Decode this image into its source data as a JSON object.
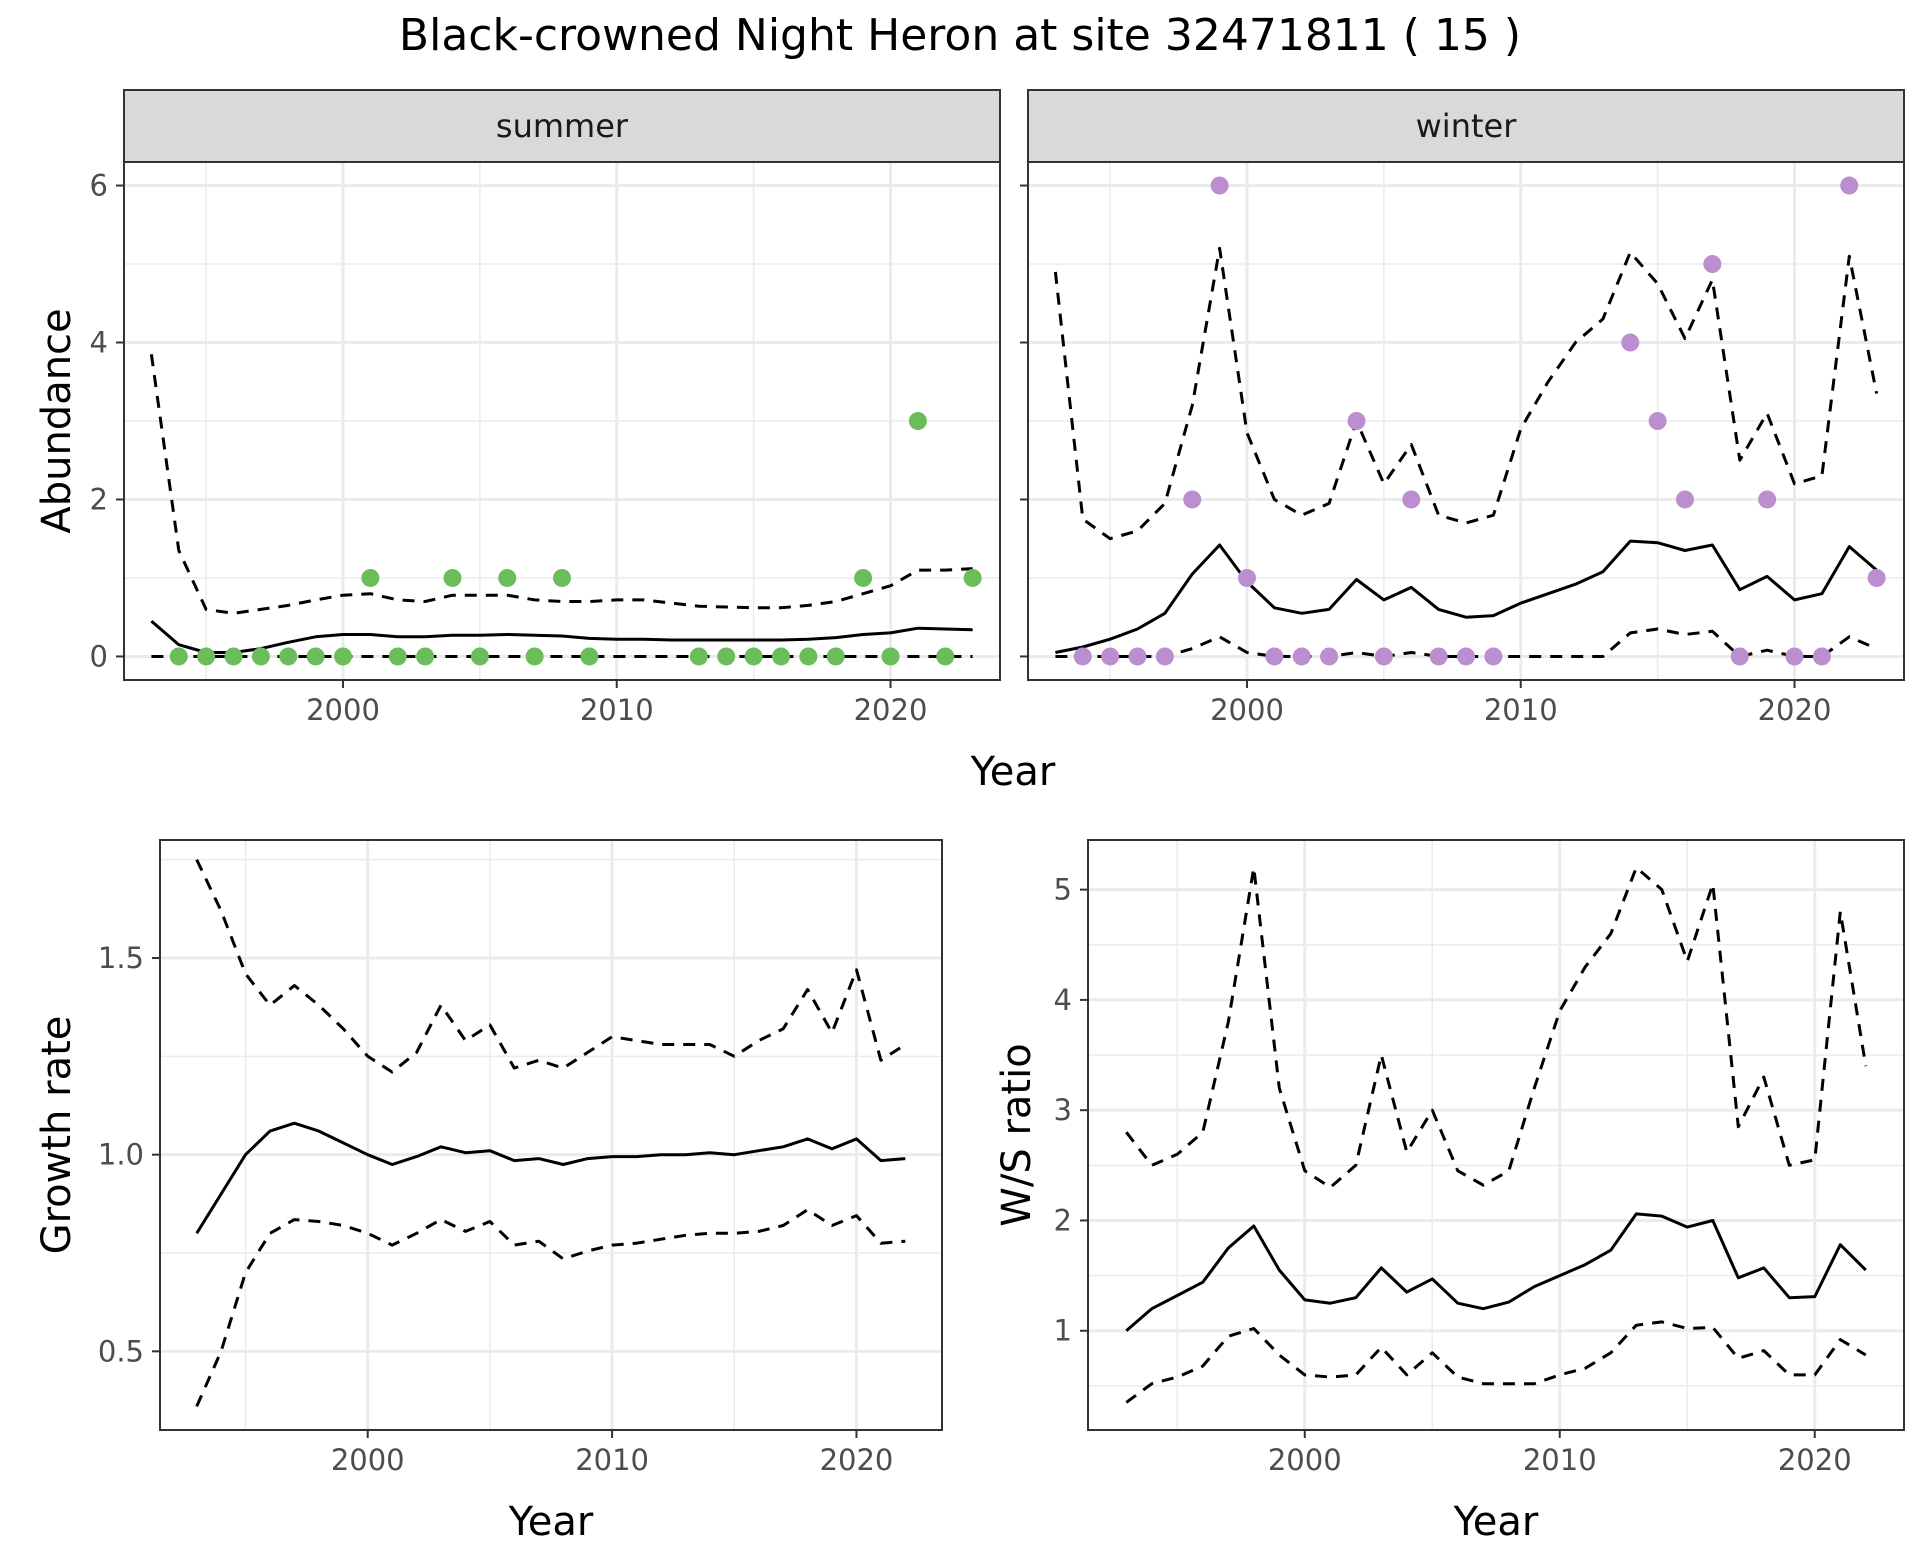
{
  "page_title": "Black-crowned Night Heron at site 32471811 ( 15 )",
  "colors": {
    "summer_points": "#6bbd5b",
    "winter_points": "#bb8fcf",
    "lines": "#000000",
    "strip_bg": "#d9d9d9",
    "grid": "#ebebeb"
  },
  "chart_data": [
    {
      "id": "abundance_summer",
      "type": "line",
      "facet_label": "summer",
      "xlabel": "Year",
      "ylabel": "Abundance",
      "xlim": [
        1992,
        2024
      ],
      "ylim": [
        -0.3,
        6.3
      ],
      "xticks": [
        2000,
        2010,
        2020
      ],
      "yticks": [
        0,
        2,
        4,
        6
      ],
      "grid": true,
      "x": [
        1993,
        1994,
        1995,
        1996,
        1997,
        1998,
        1999,
        2000,
        2001,
        2002,
        2003,
        2004,
        2005,
        2006,
        2007,
        2008,
        2009,
        2010,
        2011,
        2012,
        2013,
        2014,
        2015,
        2016,
        2017,
        2018,
        2019,
        2020,
        2021,
        2022,
        2023
      ],
      "series": [
        {
          "role": "mean",
          "style": "solid",
          "values": [
            0.45,
            0.15,
            0.05,
            0.05,
            0.1,
            0.18,
            0.25,
            0.28,
            0.28,
            0.25,
            0.25,
            0.27,
            0.27,
            0.28,
            0.27,
            0.26,
            0.23,
            0.22,
            0.22,
            0.21,
            0.21,
            0.21,
            0.21,
            0.21,
            0.22,
            0.24,
            0.28,
            0.3,
            0.36,
            0.35,
            0.34
          ]
        },
        {
          "role": "upper",
          "style": "dashed",
          "values": [
            3.85,
            1.35,
            0.6,
            0.55,
            0.6,
            0.65,
            0.72,
            0.78,
            0.8,
            0.72,
            0.7,
            0.78,
            0.78,
            0.78,
            0.72,
            0.7,
            0.7,
            0.72,
            0.72,
            0.68,
            0.64,
            0.63,
            0.62,
            0.62,
            0.65,
            0.7,
            0.8,
            0.9,
            1.1,
            1.1,
            1.12
          ]
        },
        {
          "role": "lower",
          "style": "dashed",
          "values": [
            0,
            0,
            0,
            0,
            0,
            0,
            0,
            0,
            0,
            0,
            0,
            0,
            0,
            0,
            0,
            0,
            0,
            0,
            0,
            0,
            0,
            0,
            0,
            0,
            0,
            0,
            0,
            0,
            0,
            0,
            0
          ]
        }
      ],
      "points": {
        "x": [
          1994,
          1995,
          1996,
          1997,
          1998,
          1999,
          2000,
          2001,
          2002,
          2003,
          2004,
          2005,
          2006,
          2007,
          2008,
          2009,
          2013,
          2014,
          2015,
          2016,
          2017,
          2018,
          2019,
          2020,
          2021,
          2022,
          2023
        ],
        "y": [
          0,
          0,
          0,
          0,
          0,
          0,
          0,
          1,
          0,
          0,
          1,
          0,
          1,
          0,
          1,
          0,
          0,
          0,
          0,
          0,
          0,
          0,
          1,
          0,
          3,
          0,
          1
        ]
      }
    },
    {
      "id": "abundance_winter",
      "type": "line",
      "facet_label": "winter",
      "xlabel": "Year",
      "ylabel": "Abundance",
      "xlim": [
        1992,
        2024
      ],
      "ylim": [
        -0.3,
        6.3
      ],
      "xticks": [
        2000,
        2010,
        2020
      ],
      "yticks": [
        0,
        2,
        4,
        6
      ],
      "grid": true,
      "x": [
        1993,
        1994,
        1995,
        1996,
        1997,
        1998,
        1999,
        2000,
        2001,
        2002,
        2003,
        2004,
        2005,
        2006,
        2007,
        2008,
        2009,
        2010,
        2011,
        2012,
        2013,
        2014,
        2015,
        2016,
        2017,
        2018,
        2019,
        2020,
        2021,
        2022,
        2023
      ],
      "series": [
        {
          "role": "mean",
          "style": "solid",
          "values": [
            0.05,
            0.12,
            0.22,
            0.35,
            0.55,
            1.05,
            1.42,
            0.95,
            0.62,
            0.55,
            0.6,
            0.98,
            0.72,
            0.88,
            0.6,
            0.5,
            0.52,
            0.68,
            0.8,
            0.92,
            1.08,
            1.47,
            1.45,
            1.35,
            1.42,
            0.85,
            1.02,
            0.72,
            0.8,
            1.4,
            1.1
          ]
        },
        {
          "role": "upper",
          "style": "dashed",
          "values": [
            4.9,
            1.75,
            1.5,
            1.6,
            1.95,
            3.2,
            5.2,
            2.85,
            2.0,
            1.8,
            1.95,
            3.0,
            2.2,
            2.7,
            1.8,
            1.7,
            1.8,
            2.9,
            3.5,
            4.0,
            4.3,
            5.15,
            4.75,
            4.05,
            4.8,
            2.5,
            3.1,
            2.2,
            2.3,
            5.1,
            3.35
          ]
        },
        {
          "role": "lower",
          "style": "dashed",
          "values": [
            0,
            0,
            0,
            0,
            0,
            0.1,
            0.25,
            0.05,
            0,
            0,
            0,
            0.05,
            0,
            0.05,
            0,
            0,
            0,
            0,
            0,
            0,
            0,
            0.3,
            0.35,
            0.28,
            0.32,
            0,
            0.08,
            0,
            0,
            0.25,
            0.1
          ]
        }
      ],
      "points": {
        "x": [
          1994,
          1995,
          1996,
          1997,
          1998,
          1999,
          2000,
          2001,
          2002,
          2003,
          2004,
          2005,
          2006,
          2007,
          2008,
          2009,
          2014,
          2015,
          2016,
          2017,
          2018,
          2019,
          2020,
          2021,
          2022,
          2023
        ],
        "y": [
          0,
          0,
          0,
          0,
          2,
          6,
          1,
          0,
          0,
          0,
          3,
          0,
          2,
          0,
          0,
          0,
          4,
          3,
          2,
          5,
          0,
          2,
          0,
          0,
          6,
          1
        ]
      }
    },
    {
      "id": "growth_rate",
      "type": "line",
      "xlabel": "Year",
      "ylabel": "Growth rate",
      "xlim": [
        1991.5,
        2023.5
      ],
      "ylim": [
        0.3,
        1.8
      ],
      "xticks": [
        2000,
        2010,
        2020
      ],
      "yticks": [
        0.5,
        1.0,
        1.5
      ],
      "ytick_labels": [
        "0.5",
        "1.0",
        "1.5"
      ],
      "grid": true,
      "x": [
        1993,
        1994,
        1995,
        1996,
        1997,
        1998,
        1999,
        2000,
        2001,
        2002,
        2003,
        2004,
        2005,
        2006,
        2007,
        2008,
        2009,
        2010,
        2011,
        2012,
        2013,
        2014,
        2015,
        2016,
        2017,
        2018,
        2019,
        2020,
        2021,
        2022
      ],
      "series": [
        {
          "role": "mean",
          "style": "solid",
          "values": [
            0.8,
            0.9,
            1.0,
            1.06,
            1.08,
            1.06,
            1.03,
            1.0,
            0.975,
            0.995,
            1.02,
            1.005,
            1.01,
            0.985,
            0.99,
            0.975,
            0.99,
            0.995,
            0.995,
            1.0,
            1.0,
            1.005,
            1.0,
            1.01,
            1.02,
            1.04,
            1.015,
            1.04,
            0.985,
            0.99
          ]
        },
        {
          "role": "upper",
          "style": "dashed",
          "values": [
            1.75,
            1.62,
            1.46,
            1.38,
            1.43,
            1.38,
            1.32,
            1.25,
            1.21,
            1.26,
            1.38,
            1.29,
            1.33,
            1.22,
            1.24,
            1.22,
            1.26,
            1.3,
            1.29,
            1.28,
            1.28,
            1.28,
            1.25,
            1.29,
            1.32,
            1.42,
            1.31,
            1.47,
            1.24,
            1.28
          ]
        },
        {
          "role": "lower",
          "style": "dashed",
          "values": [
            0.36,
            0.5,
            0.7,
            0.8,
            0.835,
            0.83,
            0.82,
            0.8,
            0.77,
            0.8,
            0.835,
            0.805,
            0.83,
            0.77,
            0.78,
            0.735,
            0.755,
            0.77,
            0.775,
            0.785,
            0.795,
            0.8,
            0.8,
            0.805,
            0.82,
            0.86,
            0.82,
            0.845,
            0.775,
            0.78
          ]
        }
      ]
    },
    {
      "id": "ws_ratio",
      "type": "line",
      "xlabel": "Year",
      "ylabel": "W/S ratio",
      "xlim": [
        1991.5,
        2023.5
      ],
      "ylim": [
        0.1,
        5.45
      ],
      "xticks": [
        2000,
        2010,
        2020
      ],
      "yticks": [
        1,
        2,
        3,
        4,
        5
      ],
      "grid": true,
      "x": [
        1993,
        1994,
        1995,
        1996,
        1997,
        1998,
        1999,
        2000,
        2001,
        2002,
        2003,
        2004,
        2005,
        2006,
        2007,
        2008,
        2009,
        2010,
        2011,
        2012,
        2013,
        2014,
        2015,
        2016,
        2017,
        2018,
        2019,
        2020,
        2021,
        2022
      ],
      "series": [
        {
          "role": "mean",
          "style": "solid",
          "values": [
            1.0,
            1.2,
            1.32,
            1.44,
            1.75,
            1.95,
            1.55,
            1.28,
            1.25,
            1.3,
            1.57,
            1.35,
            1.47,
            1.25,
            1.2,
            1.26,
            1.4,
            1.5,
            1.6,
            1.73,
            2.06,
            2.04,
            1.94,
            2.0,
            1.48,
            1.57,
            1.3,
            1.31,
            1.78,
            1.55
          ]
        },
        {
          "role": "upper",
          "style": "dashed",
          "values": [
            2.8,
            2.5,
            2.6,
            2.8,
            3.8,
            5.2,
            3.2,
            2.45,
            2.3,
            2.5,
            3.5,
            2.62,
            3.0,
            2.45,
            2.32,
            2.45,
            3.2,
            3.9,
            4.3,
            4.6,
            5.2,
            5.0,
            4.35,
            5.05,
            2.85,
            3.3,
            2.5,
            2.55,
            4.8,
            3.4
          ]
        },
        {
          "role": "lower",
          "style": "dashed",
          "values": [
            0.35,
            0.52,
            0.58,
            0.68,
            0.95,
            1.02,
            0.78,
            0.6,
            0.58,
            0.6,
            0.85,
            0.6,
            0.8,
            0.58,
            0.52,
            0.52,
            0.52,
            0.6,
            0.66,
            0.8,
            1.05,
            1.08,
            1.02,
            1.03,
            0.75,
            0.82,
            0.6,
            0.6,
            0.92,
            0.78
          ]
        }
      ]
    }
  ]
}
